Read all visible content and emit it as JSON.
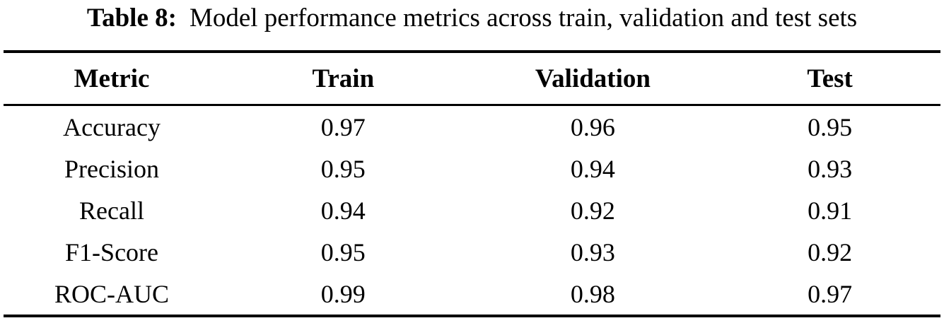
{
  "caption": {
    "label": "Table 8:",
    "text": "Model performance metrics across train, validation and test sets"
  },
  "table": {
    "columns": [
      "Metric",
      "Train",
      "Validation",
      "Test"
    ],
    "rows": [
      {
        "metric": "Accuracy",
        "train": "0.97",
        "validation": "0.96",
        "test": "0.95"
      },
      {
        "metric": "Precision",
        "train": "0.95",
        "validation": "0.94",
        "test": "0.93"
      },
      {
        "metric": "Recall",
        "train": "0.94",
        "validation": "0.92",
        "test": "0.91"
      },
      {
        "metric": "F1-Score",
        "train": "0.95",
        "validation": "0.93",
        "test": "0.92"
      },
      {
        "metric": "ROC-AUC",
        "train": "0.99",
        "validation": "0.98",
        "test": "0.97"
      }
    ]
  },
  "colors": {
    "text": "#000000",
    "background": "#ffffff",
    "rule": "#000000"
  }
}
